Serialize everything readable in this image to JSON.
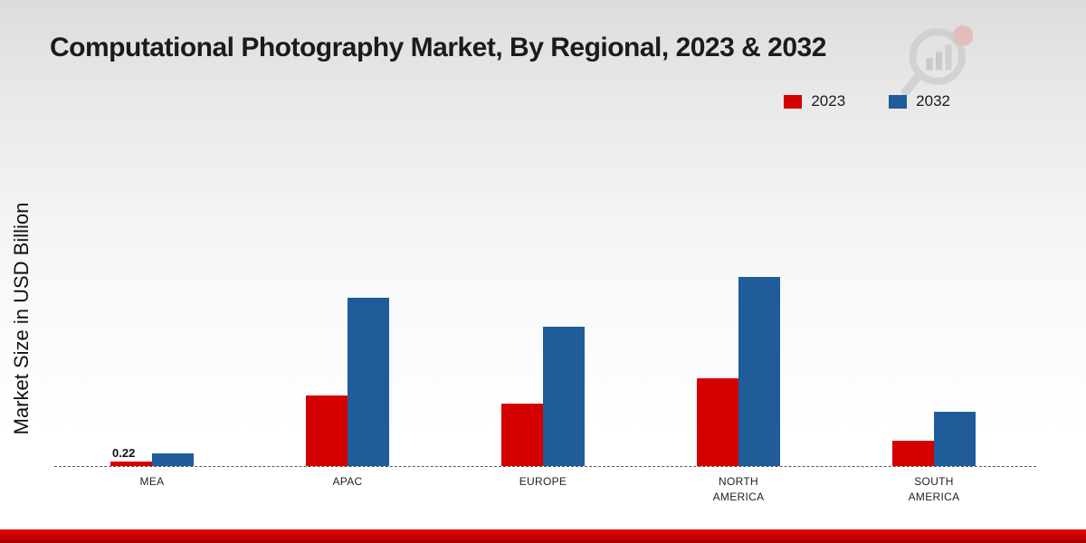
{
  "title": "Computational Photography Market, By Regional, 2023 & 2032",
  "ylabel": "Market Size in USD Billion",
  "legend": [
    {
      "label": "2023",
      "color": "#d40000"
    },
    {
      "label": "2032",
      "color": "#1f5c99"
    }
  ],
  "chart_data": {
    "type": "bar",
    "title": "Computational Photography Market, By Regional, 2023 & 2032",
    "xlabel": "",
    "ylabel": "Market Size in USD Billion",
    "categories": [
      "MEA",
      "APAC",
      "EUROPE",
      "NORTH AMERICA",
      "SOUTH AMERICA"
    ],
    "series": [
      {
        "name": "2023",
        "color": "#d40000",
        "values": [
          0.22,
          3.4,
          3.0,
          4.2,
          1.2
        ]
      },
      {
        "name": "2032",
        "color": "#1f5c99",
        "values": [
          0.62,
          8.1,
          6.7,
          9.1,
          2.6
        ]
      }
    ],
    "annotations": [
      {
        "text": "0.22",
        "category": "MEA",
        "series": "2023"
      }
    ],
    "ylim": [
      0,
      10
    ],
    "grid": false,
    "baseline_style": "dashed",
    "legend_position": "top-right"
  },
  "colors": {
    "footer_strip": "#cc0000",
    "background_top": "#dcdcdc",
    "background_bottom": "#ffffff"
  }
}
